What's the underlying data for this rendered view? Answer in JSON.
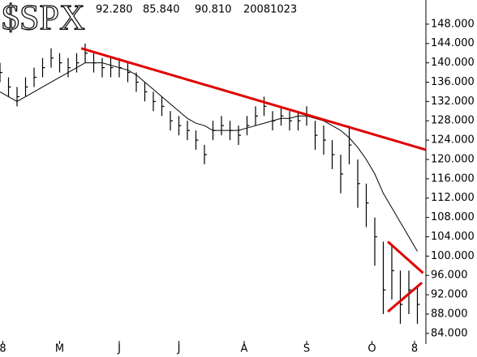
{
  "chart_data": {
    "type": "ohlc",
    "title": "$SPX",
    "header_values": [
      "92.280",
      "85.840",
      "90.810",
      "20081023"
    ],
    "x": [
      0,
      3,
      6,
      9,
      12,
      15,
      18,
      21,
      24,
      27,
      30,
      33,
      36,
      39,
      42,
      45,
      48,
      51,
      54,
      57,
      60,
      63,
      66,
      69,
      72,
      75,
      78,
      81,
      84,
      87,
      90,
      93,
      96,
      99,
      102,
      105,
      108,
      111,
      114,
      117,
      120,
      123,
      126,
      129,
      132,
      135,
      138,
      141,
      144,
      147
    ],
    "high": [
      140,
      137,
      135,
      137,
      139,
      141,
      143,
      142,
      141,
      142,
      144,
      142,
      141,
      141,
      141,
      140,
      138,
      136,
      134,
      133,
      130,
      129,
      128,
      126,
      123,
      128,
      129,
      128,
      127,
      129,
      131,
      133,
      130,
      131,
      130,
      130,
      131,
      128,
      127,
      124,
      121,
      127,
      120,
      115,
      108,
      103,
      102,
      97,
      97,
      94
    ],
    "low": [
      136,
      133,
      131,
      133,
      135,
      137,
      139,
      138,
      137,
      138,
      140,
      138,
      137,
      137,
      137,
      136,
      134,
      132,
      130,
      129,
      126,
      125,
      124,
      122,
      119,
      124,
      125,
      124,
      123,
      125,
      127,
      129,
      126,
      127,
      126,
      126,
      127,
      122,
      121,
      118,
      113,
      119,
      110,
      106,
      98,
      88,
      91,
      86,
      88,
      86
    ],
    "close": [
      138,
      135,
      133,
      135,
      137,
      139,
      141,
      140,
      139,
      140,
      142,
      140,
      139,
      139,
      139,
      138,
      136,
      134,
      132,
      131,
      128,
      127,
      126,
      124,
      121,
      126,
      127,
      126,
      125,
      127,
      129,
      131,
      128,
      129,
      128,
      128,
      129,
      125,
      124,
      121,
      117,
      123,
      115,
      111,
      104,
      93,
      97,
      90,
      93,
      90
    ],
    "bar_color": "#000000",
    "moving_average": [
      134,
      133,
      132,
      133,
      134,
      135,
      136,
      137,
      138,
      139,
      140,
      140,
      140,
      139.5,
      139,
      138.5,
      137.5,
      136,
      134.5,
      133,
      131.5,
      130,
      128.5,
      127.5,
      127,
      126,
      126,
      126,
      126,
      126.5,
      127,
      127.5,
      128,
      128.5,
      128.5,
      129,
      129,
      128.5,
      128,
      127,
      126,
      124.5,
      122.5,
      120,
      117,
      113,
      110,
      107,
      104,
      101
    ],
    "trendlines": [
      {
        "x": [
          28.6,
          150
        ],
        "values": [
          143,
          122
        ]
      },
      {
        "x": [
          136.6,
          149
        ],
        "values": [
          103,
          96.5
        ]
      },
      {
        "x": [
          136.6,
          148.6
        ],
        "values": [
          88.5,
          94.5
        ]
      }
    ],
    "trendline_color": "#e00000",
    "xlim": [
      0,
      150
    ],
    "xticks": [
      {
        "value": 1,
        "label": "8"
      },
      {
        "value": 21,
        "label": "M"
      },
      {
        "value": 42,
        "label": "J"
      },
      {
        "value": 63,
        "label": "J"
      },
      {
        "value": 86,
        "label": "A"
      },
      {
        "value": 108,
        "label": "S"
      },
      {
        "value": 131,
        "label": "O"
      },
      {
        "value": 146,
        "label": "8"
      }
    ],
    "ylim": [
      81.8,
      153
    ],
    "yticks": [
      {
        "value": 84,
        "label": "84.000"
      },
      {
        "value": 88,
        "label": "88.000"
      },
      {
        "value": 92,
        "label": "92.000"
      },
      {
        "value": 96,
        "label": "96.000"
      },
      {
        "value": 100,
        "label": "100.000"
      },
      {
        "value": 104,
        "label": "104.000"
      },
      {
        "value": 108,
        "label": "108.000"
      },
      {
        "value": 112,
        "label": "112.000"
      },
      {
        "value": 116,
        "label": "116.000"
      },
      {
        "value": 120,
        "label": "120.000"
      },
      {
        "value": 124,
        "label": "124.000"
      },
      {
        "value": 128,
        "label": "128.000"
      },
      {
        "value": 132,
        "label": "132.000"
      },
      {
        "value": 136,
        "label": "136.000"
      },
      {
        "value": 140,
        "label": "140.000"
      },
      {
        "value": 144,
        "label": "144.000"
      },
      {
        "value": 148,
        "label": "148.000"
      }
    ]
  }
}
